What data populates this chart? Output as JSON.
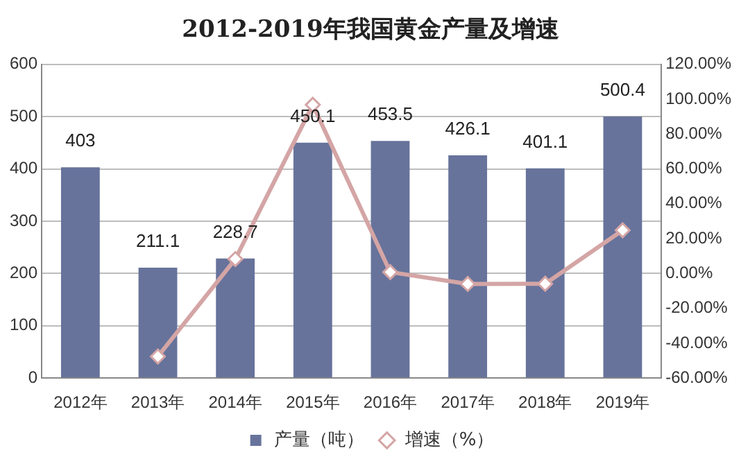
{
  "chart_data": {
    "type": "bar",
    "title": "2012-2019年我国黄金产量及增速",
    "categories": [
      "2012年",
      "2013年",
      "2014年",
      "2015年",
      "2016年",
      "2017年",
      "2018年",
      "2019年"
    ],
    "series": [
      {
        "name": "产量（吨）",
        "color": "#67739b",
        "values": [
          403,
          211.1,
          228.7,
          450.1,
          453.5,
          426.1,
          401.1,
          500.4
        ],
        "value_labels": [
          "403",
          "211.1",
          "228.7",
          "450.1",
          "453.5",
          "426.1",
          "401.1",
          "500.4"
        ]
      },
      {
        "name": "增速（%）",
        "type": "line",
        "axis": "y2",
        "color": "#d4a5a5",
        "values": [
          null,
          -47.6,
          8.3,
          96.8,
          0.8,
          -6.0,
          -5.9,
          24.8
        ]
      }
    ],
    "ylim": [
      0,
      600
    ],
    "yticks": [
      0,
      100,
      200,
      300,
      400,
      500,
      600
    ],
    "y2lim": [
      -60,
      120
    ],
    "y2ticks": [
      {
        "value": -60,
        "label": "-60.00%"
      },
      {
        "value": -40,
        "label": "-40.00%"
      },
      {
        "value": -20,
        "label": "-20.00%"
      },
      {
        "value": 0,
        "label": "0.00%"
      },
      {
        "value": 20,
        "label": "20.00%"
      },
      {
        "value": 40,
        "label": "40.00%"
      },
      {
        "value": 60,
        "label": "60.00%"
      },
      {
        "value": 80,
        "label": "80.00%"
      },
      {
        "value": 100,
        "label": "100.00%"
      },
      {
        "value": 120,
        "label": "120.00%"
      }
    ],
    "grid": "y",
    "legend": "bottom",
    "marker": "diamond"
  }
}
